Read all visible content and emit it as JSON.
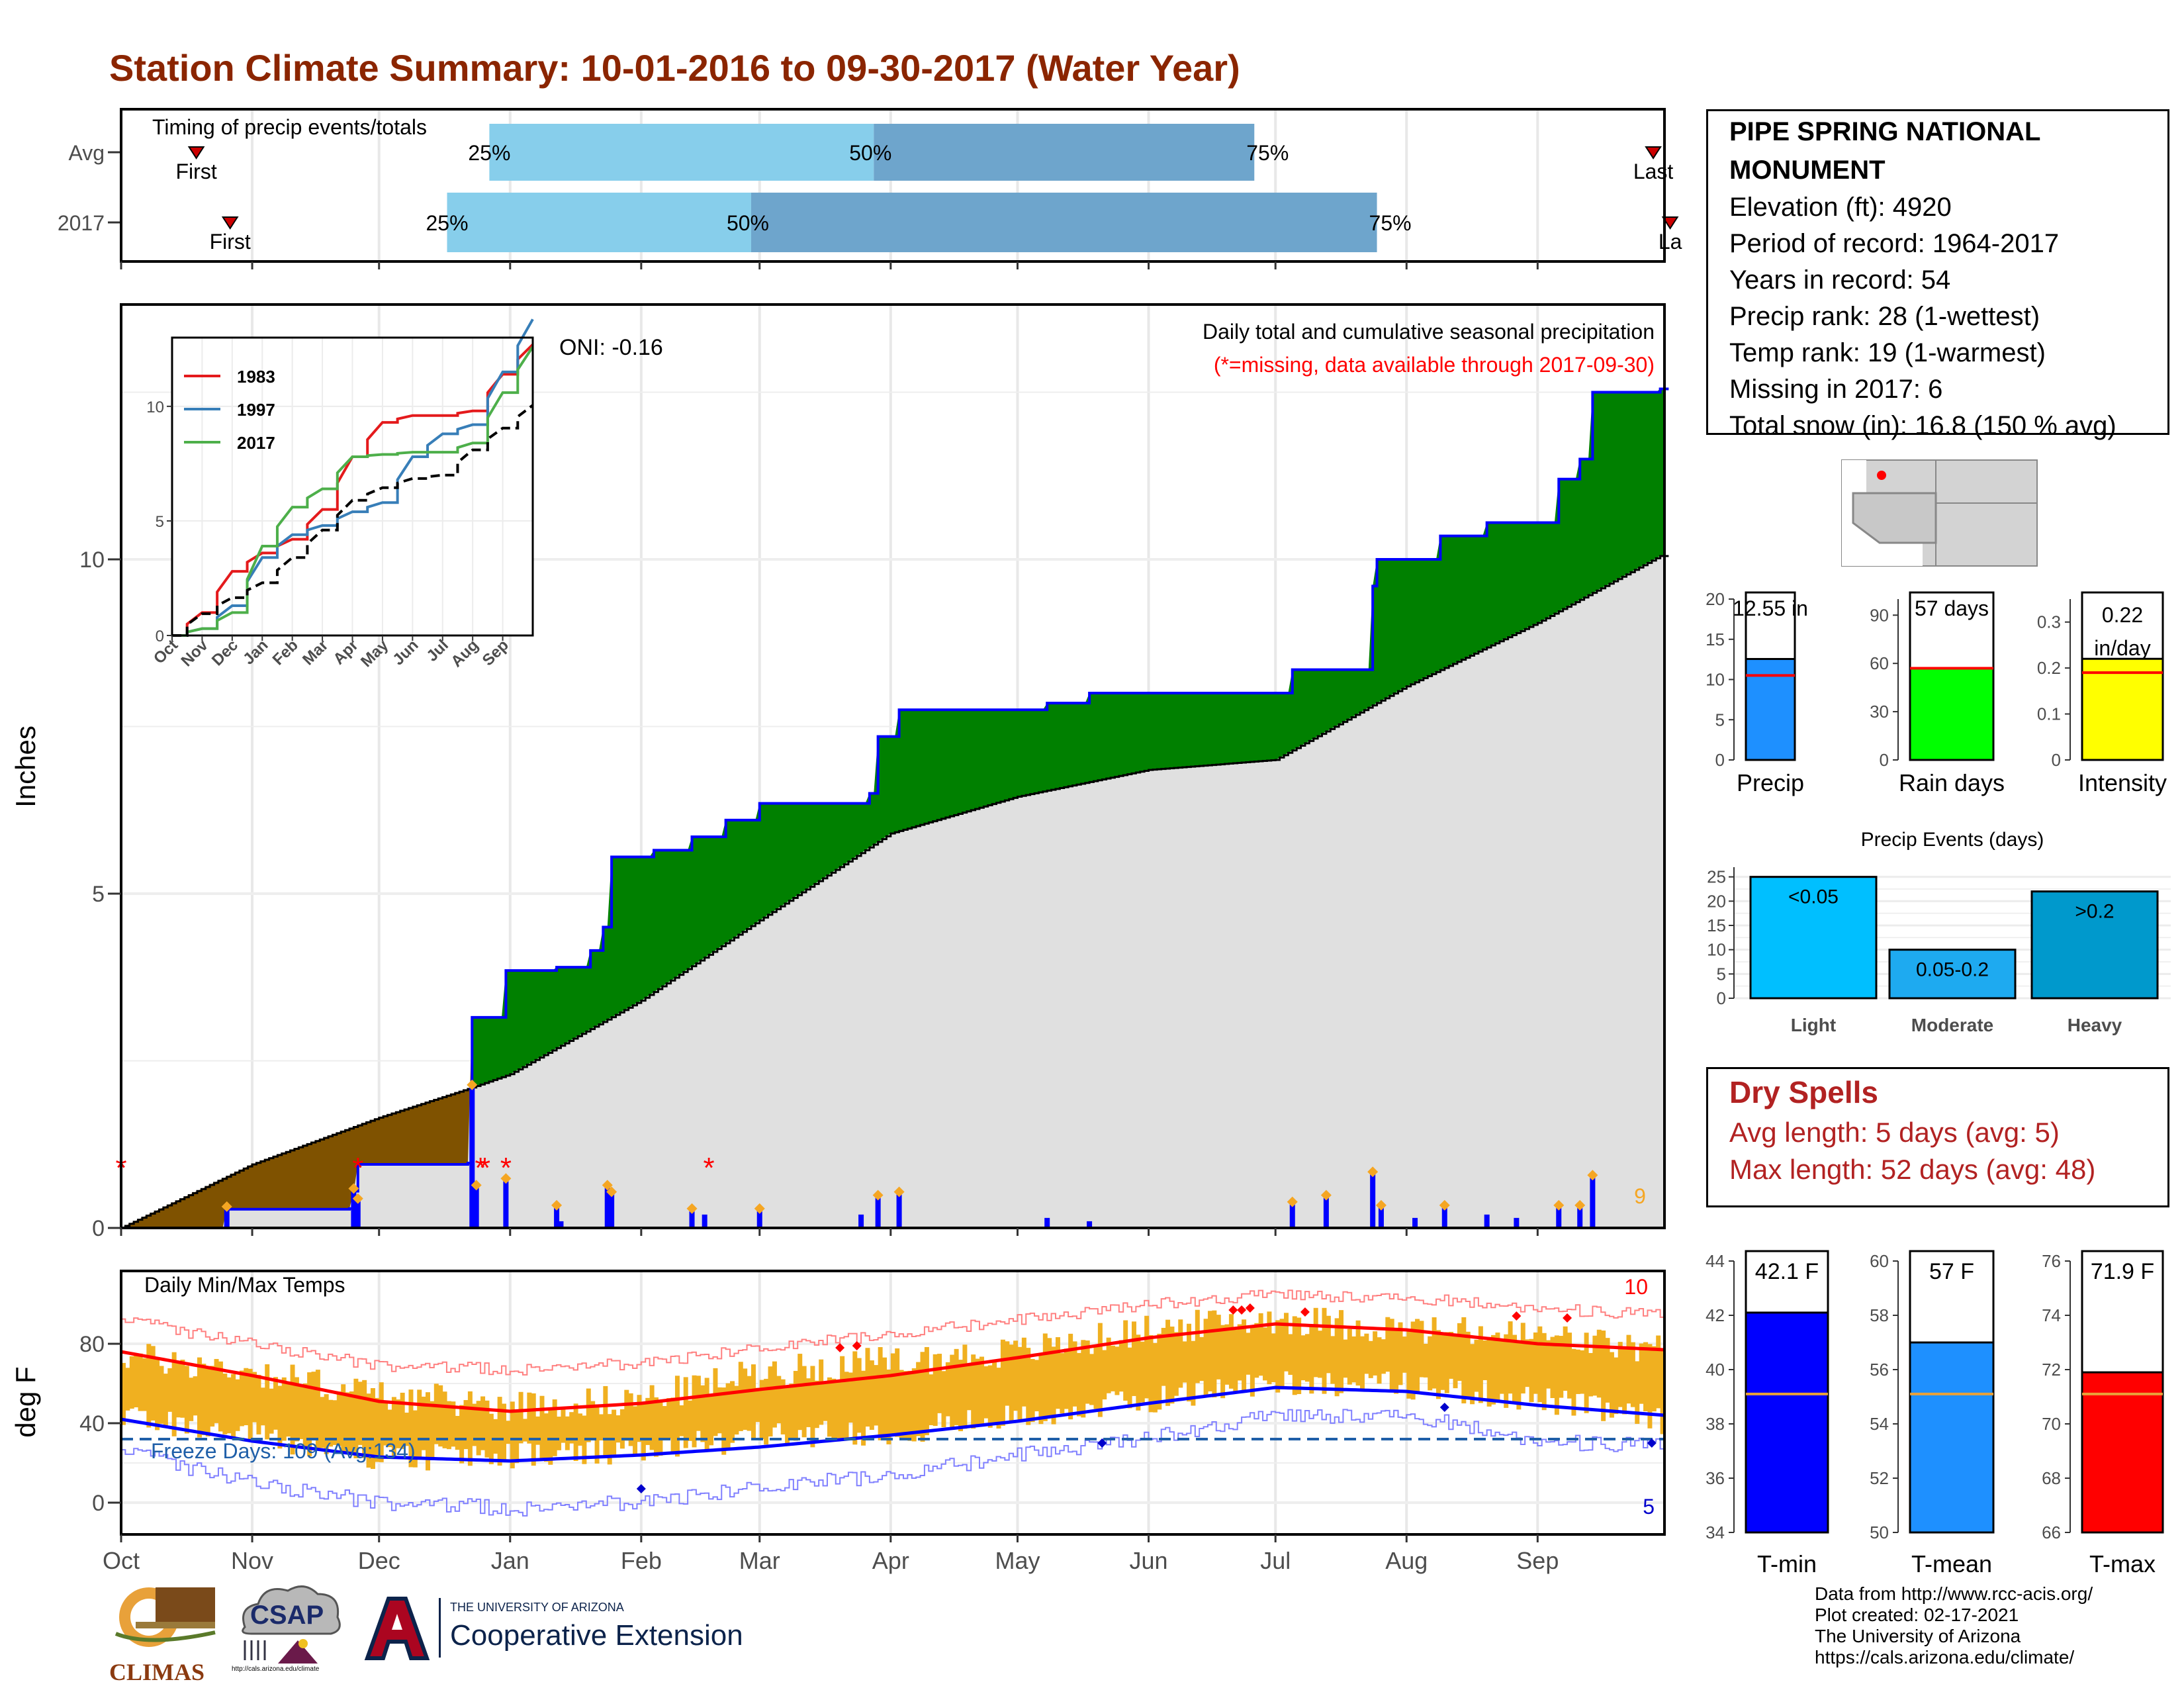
{
  "page": {
    "title": "Station Climate Summary: 10-01-2016 to 09-30-2017 (Water Year)"
  },
  "station": {
    "name": "PIPE SPRING NATIONAL MONUMENT",
    "lines": [
      "Elevation (ft): 4920",
      "Period of record: 1964-2017",
      "Years in record: 54",
      "Precip rank: 28 (1-wettest)",
      "Temp rank: 19 (1-warmest)",
      "Missing in 2017: 6",
      "Total snow (in): 16.8 (150 % avg)"
    ]
  },
  "dry_spells": {
    "title": "Dry Spells",
    "avg_length": "Avg length: 5 days (avg: 5)",
    "max_length": "Max length: 52 days (avg: 48)"
  },
  "footer": {
    "lines": [
      "Data from http://www.rcc-acis.org/",
      "Plot created: 02-17-2021",
      "The University of Arizona",
      "https://cals.arizona.edu/climate/"
    ]
  },
  "logos": {
    "climas": "CLIMAS",
    "csap": "CSAP",
    "csap_url": "http://cals.arizona.edu/climate",
    "ua_small": "THE UNIVERSITY OF ARIZONA",
    "ua_big": "Cooperative Extension"
  },
  "colors": {
    "title": "#8b2500",
    "green_fill": "#008000",
    "brown_fill": "#7f5200",
    "gray_fill": "#e0e0e0",
    "precip_blue": "#0000ff",
    "temp_bar": "#f0b020",
    "tmax_line": "#ff0000",
    "tmin_line": "#0000ff",
    "light_blue": "#87ceeb",
    "mid_blue": "#6ea5cc",
    "precip_bar": "#1e90ff",
    "raindays_bar": "#00ff00",
    "intensity_bar": "#ffff00",
    "events_light": "#00bfff",
    "events_moderate": "#1eaaf0",
    "events_heavy": "#0099cc",
    "tmean_bar": "#1e90ff",
    "dry_spells": "#b22222"
  },
  "chart_data": [
    {
      "id": "timing",
      "type": "bar",
      "title": "Timing of precip events/totals",
      "rows": [
        "Avg",
        "2017"
      ],
      "avg": {
        "first": "10-18",
        "p25": "12-31",
        "p50": "03-28",
        "p75": "06-26",
        "last": "09-26"
      },
      "y2017": {
        "first": "10-26",
        "p25": "12-21",
        "p50": "02-27",
        "p75": "07-25",
        "last": "09-30"
      },
      "labels": {
        "first": "First",
        "last": "Last",
        "last_clipped": "La",
        "p25": "25%",
        "p50": "50%",
        "p75": "75%"
      }
    },
    {
      "id": "precip",
      "type": "area",
      "ylabel": "Inches",
      "ylim": [
        0,
        12.5
      ],
      "yticks": [
        0,
        5,
        10
      ],
      "xticks": [
        "Oct",
        "Nov",
        "Dec",
        "Jan",
        "Feb",
        "Mar",
        "Apr",
        "May",
        "Jun",
        "Jul",
        "Aug",
        "Sep"
      ],
      "label": "Daily total and cumulative seasonal precipitation",
      "missing_note": "(*=missing, data available through 2017-09-30)",
      "oni": "ONI: -0.16",
      "corner_count": "9",
      "cumulative_2017": [
        {
          "date": "10-01",
          "value": 0.0
        },
        {
          "date": "10-26",
          "value": 0.28
        },
        {
          "date": "11-24",
          "value": 0.29
        },
        {
          "date": "11-25",
          "value": 0.55
        },
        {
          "date": "11-26",
          "value": 0.95
        },
        {
          "date": "12-22",
          "value": 0.97
        },
        {
          "date": "12-23",
          "value": 3.15
        },
        {
          "date": "12-31",
          "value": 3.85
        },
        {
          "date": "01-12",
          "value": 3.9
        },
        {
          "date": "01-20",
          "value": 4.15
        },
        {
          "date": "01-23",
          "value": 4.5
        },
        {
          "date": "01-25",
          "value": 5.55
        },
        {
          "date": "02-04",
          "value": 5.65
        },
        {
          "date": "02-13",
          "value": 5.85
        },
        {
          "date": "02-21",
          "value": 6.1
        },
        {
          "date": "03-01",
          "value": 6.35
        },
        {
          "date": "03-27",
          "value": 6.5
        },
        {
          "date": "03-29",
          "value": 7.35
        },
        {
          "date": "04-03",
          "value": 7.75
        },
        {
          "date": "05-08",
          "value": 7.85
        },
        {
          "date": "05-18",
          "value": 8.0
        },
        {
          "date": "07-05",
          "value": 8.35
        },
        {
          "date": "07-24",
          "value": 9.6
        },
        {
          "date": "07-25",
          "value": 10.0
        },
        {
          "date": "08-09",
          "value": 10.35
        },
        {
          "date": "08-20",
          "value": 10.55
        },
        {
          "date": "09-06",
          "value": 11.2
        },
        {
          "date": "09-11",
          "value": 11.5
        },
        {
          "date": "09-14",
          "value": 12.5
        },
        {
          "date": "09-30",
          "value": 12.55
        }
      ],
      "cumulative_avg": [
        {
          "date": "10-01",
          "value": 0.0
        },
        {
          "date": "11-01",
          "value": 0.95
        },
        {
          "date": "12-01",
          "value": 1.65
        },
        {
          "date": "12-23",
          "value": 2.1
        },
        {
          "date": "01-01",
          "value": 2.3
        },
        {
          "date": "02-01",
          "value": 3.4
        },
        {
          "date": "03-01",
          "value": 4.6
        },
        {
          "date": "04-01",
          "value": 5.9
        },
        {
          "date": "05-01",
          "value": 6.45
        },
        {
          "date": "06-01",
          "value": 6.85
        },
        {
          "date": "07-01",
          "value": 7.0
        },
        {
          "date": "08-01",
          "value": 8.1
        },
        {
          "date": "09-01",
          "value": 9.05
        },
        {
          "date": "09-30",
          "value": 10.05
        }
      ],
      "daily": [
        {
          "date": "10-26",
          "value": 0.28
        },
        {
          "date": "11-25",
          "value": 0.55
        },
        {
          "date": "11-26",
          "value": 0.4
        },
        {
          "date": "12-23",
          "value": 2.1
        },
        {
          "date": "12-24",
          "value": 0.6
        },
        {
          "date": "12-31",
          "value": 0.7
        },
        {
          "date": "01-12",
          "value": 0.3
        },
        {
          "date": "01-13",
          "value": 0.1
        },
        {
          "date": "01-24",
          "value": 0.6
        },
        {
          "date": "01-25",
          "value": 0.5
        },
        {
          "date": "02-13",
          "value": 0.25
        },
        {
          "date": "02-16",
          "value": 0.2
        },
        {
          "date": "03-01",
          "value": 0.25
        },
        {
          "date": "03-25",
          "value": 0.2
        },
        {
          "date": "03-29",
          "value": 0.45
        },
        {
          "date": "04-03",
          "value": 0.5
        },
        {
          "date": "05-08",
          "value": 0.15
        },
        {
          "date": "05-18",
          "value": 0.1
        },
        {
          "date": "07-05",
          "value": 0.35
        },
        {
          "date": "07-13",
          "value": 0.45
        },
        {
          "date": "07-24",
          "value": 0.8
        },
        {
          "date": "07-26",
          "value": 0.3
        },
        {
          "date": "08-03",
          "value": 0.15
        },
        {
          "date": "08-10",
          "value": 0.3
        },
        {
          "date": "08-20",
          "value": 0.2
        },
        {
          "date": "08-27",
          "value": 0.15
        },
        {
          "date": "09-06",
          "value": 0.3
        },
        {
          "date": "09-11",
          "value": 0.3
        },
        {
          "date": "09-14",
          "value": 0.75
        }
      ],
      "missing_dates": [
        "10-01",
        "11-26",
        "12-25",
        "12-26",
        "12-31",
        "02-17"
      ]
    },
    {
      "id": "inset",
      "type": "line",
      "ylim": [
        0,
        13
      ],
      "yticks": [
        0,
        5,
        10
      ],
      "xticks": [
        "Oct",
        "Nov",
        "Dec",
        "Jan",
        "Feb",
        "Mar",
        "Apr",
        "May",
        "Jun",
        "Jul",
        "Aug",
        "Sep"
      ],
      "series": [
        {
          "name": "1983",
          "color": "#e41a1c",
          "values": [
            0,
            1.0,
            2.8,
            3.6,
            4.2,
            5.5,
            7.8,
            9.3,
            9.6,
            9.6,
            9.8,
            11.4,
            12.7
          ]
        },
        {
          "name": "1997",
          "color": "#377eb8",
          "values": [
            0,
            0.3,
            1.3,
            3.4,
            4.4,
            4.8,
            5.4,
            5.8,
            7.8,
            8.8,
            9.2,
            11.5,
            13.8
          ]
        },
        {
          "name": "2017",
          "color": "#4daf4a",
          "values": [
            0,
            0.3,
            1.0,
            3.9,
            5.6,
            6.4,
            7.8,
            7.9,
            8.0,
            8.0,
            8.4,
            10.6,
            12.6
          ]
        },
        {
          "name": "avg",
          "color": "#000000",
          "dashed": true,
          "values": [
            0,
            0.95,
            1.65,
            2.3,
            3.4,
            4.6,
            5.9,
            6.45,
            6.85,
            7.0,
            8.1,
            9.05,
            10.05
          ]
        }
      ]
    },
    {
      "id": "temps",
      "type": "bar",
      "title": "Daily Min/Max Temps",
      "ylabel": "deg F",
      "ylim": [
        -12,
        96
      ],
      "yticks": [
        0,
        40,
        80
      ],
      "xticks": [
        "Oct",
        "Nov",
        "Dec",
        "Jan",
        "Feb",
        "Mar",
        "Apr",
        "May",
        "Jun",
        "Jul",
        "Aug",
        "Sep"
      ],
      "freeze_label": "Freeze Days: 109 (Avg:134)",
      "freeze_line": 32,
      "record_high_count": "10",
      "record_low_count": "5",
      "avg_max_monthly": [
        76,
        64,
        51,
        46,
        50,
        57,
        64,
        73,
        83,
        90,
        87,
        80,
        77
      ],
      "avg_min_monthly": [
        42,
        31,
        23,
        21,
        24,
        28,
        34,
        41,
        50,
        58,
        56,
        49,
        44
      ],
      "record_max_monthly": [
        92,
        80,
        69,
        67,
        70,
        78,
        85,
        92,
        100,
        105,
        103,
        98,
        94
      ],
      "record_min_monthly": [
        26,
        10,
        0,
        -3,
        0,
        8,
        14,
        24,
        33,
        44,
        44,
        31,
        28
      ],
      "obs_max_monthly": [
        74,
        66,
        54,
        49,
        52,
        66,
        71,
        76,
        87,
        93,
        87,
        84,
        76
      ],
      "obs_min_monthly": [
        44,
        34,
        22,
        24,
        25,
        34,
        36,
        43,
        52,
        61,
        59,
        52,
        41
      ]
    },
    {
      "id": "precip_summary",
      "type": "bar",
      "categories": [
        "Precip",
        "Rain days",
        "Intensity"
      ],
      "values": [
        12.55,
        57,
        0.22
      ],
      "averages": [
        10.5,
        57,
        0.19
      ],
      "labels": [
        "12.55 in",
        "57 days",
        "0.22 in/day"
      ],
      "ylims": [
        [
          0,
          20
        ],
        [
          0,
          100
        ],
        [
          0,
          0.35
        ]
      ],
      "yticks": [
        [
          0,
          5,
          10,
          15,
          20
        ],
        [
          0,
          30,
          60,
          90
        ],
        [
          0.0,
          0.1,
          0.2,
          0.3
        ]
      ]
    },
    {
      "id": "precip_events",
      "type": "bar",
      "title": "Precip Events (days)",
      "categories": [
        "Light",
        "Moderate",
        "Heavy"
      ],
      "values": [
        25,
        10,
        22
      ],
      "labels": [
        "<0.05",
        "0.05-0.2",
        ">0.2"
      ],
      "ylim": [
        0,
        27
      ],
      "yticks": [
        0,
        5,
        10,
        15,
        20,
        25
      ]
    },
    {
      "id": "temp_summary",
      "type": "bar",
      "categories": [
        "T-min",
        "T-mean",
        "T-max"
      ],
      "values": [
        42.1,
        57,
        71.9
      ],
      "averages": [
        39.1,
        55.1,
        71.1
      ],
      "labels": [
        "42.1 F",
        "57 F",
        "71.9 F"
      ],
      "ylims": [
        [
          34,
          44
        ],
        [
          50,
          60
        ],
        [
          66,
          76
        ]
      ],
      "yticks": [
        [
          34,
          36,
          38,
          40,
          42,
          44
        ],
        [
          50,
          52,
          54,
          56,
          58,
          60
        ],
        [
          66,
          68,
          70,
          72,
          74,
          76
        ]
      ]
    }
  ]
}
